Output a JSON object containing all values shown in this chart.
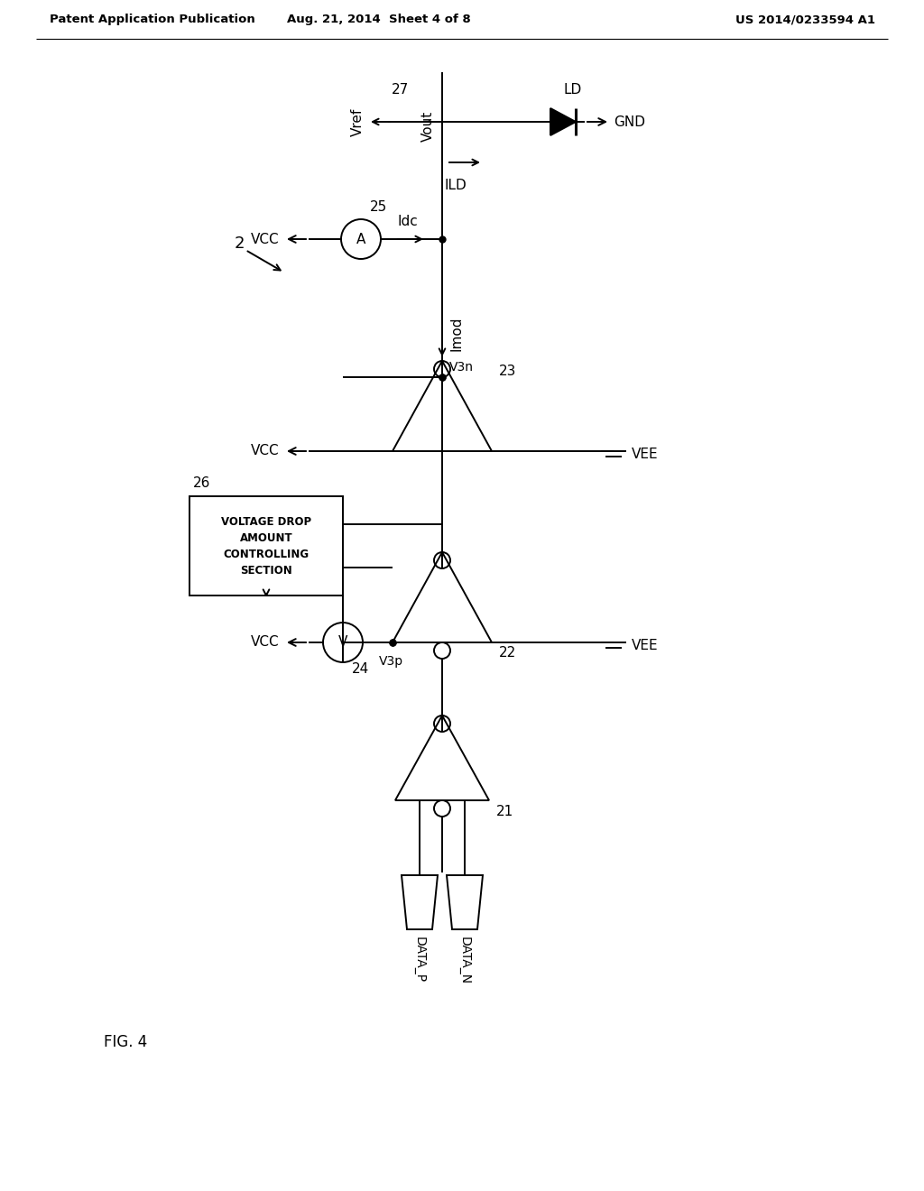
{
  "bg_color": "#ffffff",
  "header_left": "Patent Application Publication",
  "header_center": "Aug. 21, 2014  Sheet 4 of 8",
  "header_right": "US 2014/0233594 A1",
  "fig_label": "FIG. 4"
}
